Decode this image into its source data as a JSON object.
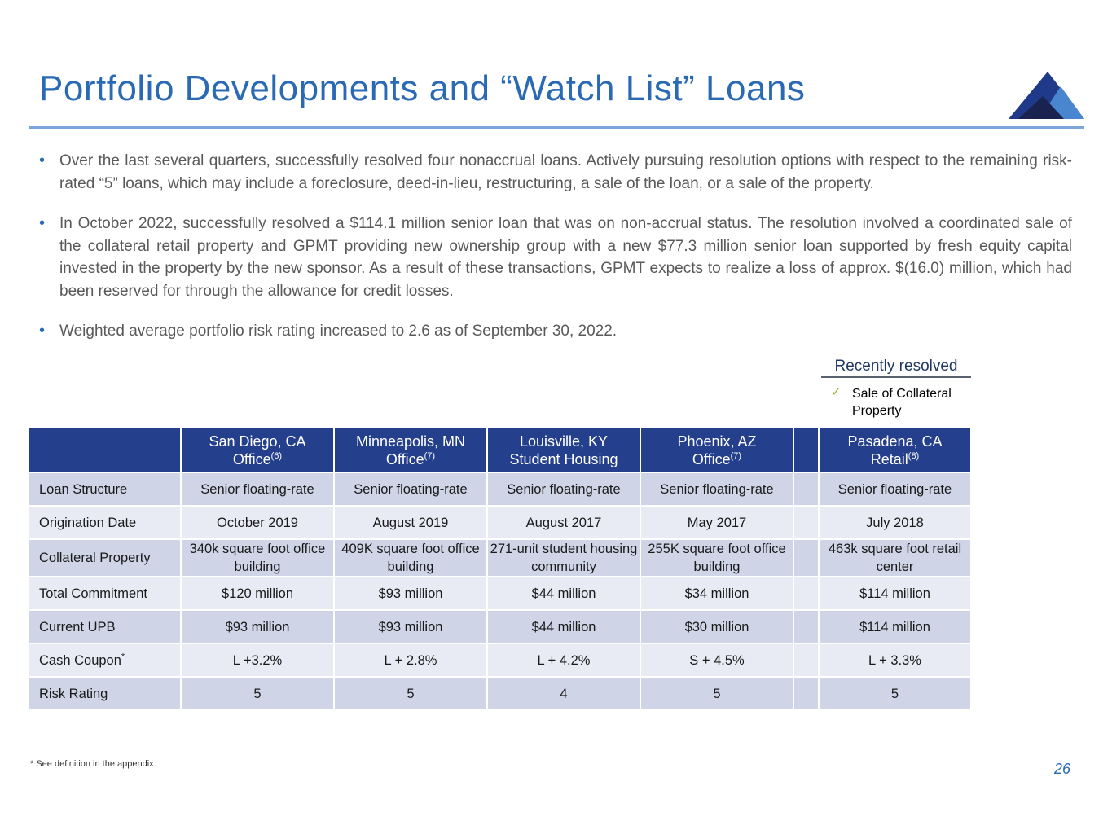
{
  "title": "Portfolio Developments and “Watch List” Loans",
  "bullets": [
    "Over the last several quarters, successfully resolved four nonaccrual loans.  Actively pursuing resolution options with respect to the remaining risk-rated “5” loans, which may include a foreclosure, deed-in-lieu, restructuring, a sale of the loan, or a sale of the property.",
    "In October 2022, successfully resolved a $114.1 million senior loan that was on non-accrual status. The resolution involved a coordinated sale of the collateral retail property and GPMT providing new ownership group with a new $77.3 million senior loan supported by fresh equity capital invested in the property by the new sponsor.  As a result of these transactions, GPMT expects to realize a loss of approx. $(16.0) million, which had been reserved for through the allowance for credit losses.",
    "Weighted average portfolio risk rating increased to 2.6 as of September 30, 2022."
  ],
  "recently_resolved": {
    "heading": "Recently resolved",
    "items": [
      "Sale of Collateral Property"
    ]
  },
  "table": {
    "columns": [
      {
        "location": "San Diego, CA",
        "type": "Office",
        "note": "(6)"
      },
      {
        "location": "Minneapolis, MN",
        "type": "Office",
        "note": "(7)"
      },
      {
        "location": "Louisville, KY",
        "type": "Student Housing"
      },
      {
        "location": "Phoenix, AZ",
        "type": "Office",
        "note": "(7)"
      },
      {
        "location": "Pasadena, CA",
        "type": "Retail",
        "note": "(8)"
      }
    ],
    "rows": [
      {
        "label": "Loan Structure",
        "cells": [
          "Senior floating-rate",
          "Senior floating-rate",
          "Senior floating-rate",
          "Senior floating-rate",
          "Senior floating-rate"
        ]
      },
      {
        "label": "Origination Date",
        "cells": [
          "October 2019",
          "August 2019",
          "August 2017",
          "May 2017",
          "July 2018"
        ]
      },
      {
        "label": "Collateral Property",
        "cells": [
          "340k square foot office building",
          "409K square foot office building",
          "271-unit student housing community",
          "255K square foot office building",
          "463k square foot retail center"
        ]
      },
      {
        "label": "Total Commitment",
        "cells": [
          "$120 million",
          "$93 million",
          "$44 million",
          "$34 million",
          "$114 million"
        ]
      },
      {
        "label": "Current UPB",
        "cells": [
          "$93 million",
          "$93 million",
          "$44 million",
          "$30 million",
          "$114 million"
        ]
      },
      {
        "label": "Cash Coupon",
        "note": "*",
        "cells": [
          "L +3.2%",
          "L + 2.8%",
          "L + 4.2%",
          "S + 4.5%",
          "L + 3.3%"
        ]
      },
      {
        "label": "Risk Rating",
        "cells": [
          "5",
          "5",
          "4",
          "5",
          "5"
        ]
      }
    ]
  },
  "footnote": "* See definition in the appendix.",
  "page_number": "26"
}
